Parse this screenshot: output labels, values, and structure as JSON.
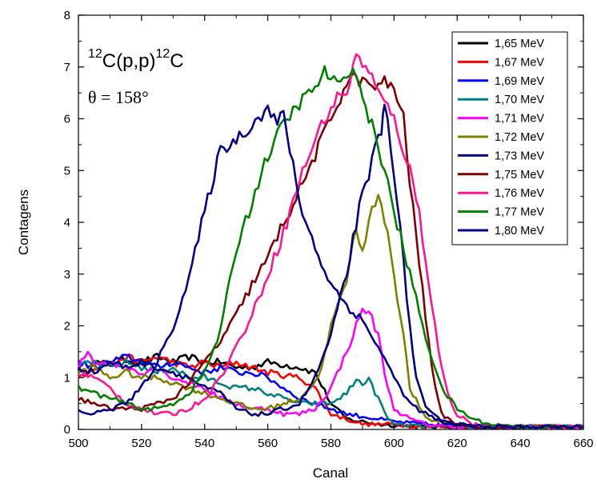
{
  "chart_data": {
    "type": "line",
    "title": "",
    "xlabel": "Canal",
    "ylabel": "Contagens",
    "xlim": [
      500,
      660
    ],
    "ylim": [
      0,
      8
    ],
    "x_ticks": [
      "500",
      "520",
      "540",
      "560",
      "580",
      "600",
      "620",
      "640",
      "660"
    ],
    "y_ticks": [
      "0",
      "1",
      "2",
      "3",
      "4",
      "5",
      "6",
      "7",
      "8"
    ],
    "grid": false,
    "legend_position": "top-right",
    "annotations": {
      "reaction_sup1": "12",
      "reaction_part1": "C(p,p)",
      "reaction_sup2": "12",
      "reaction_part2": "C",
      "angle": "θ = 158°"
    },
    "series": [
      {
        "name": "1,65 MeV",
        "color": "#000000",
        "x": [
          500,
          505,
          510,
          515,
          520,
          525,
          530,
          535,
          540,
          545,
          550,
          555,
          560,
          565,
          570,
          575,
          580,
          585,
          590,
          595,
          600,
          610,
          620,
          630,
          640,
          650,
          660
        ],
        "y": [
          1.2,
          1.3,
          1.25,
          1.35,
          1.3,
          1.4,
          1.3,
          1.4,
          1.3,
          1.3,
          1.2,
          1.2,
          1.3,
          1.25,
          1.2,
          1.1,
          0.5,
          0.2,
          0.15,
          0.1,
          0.08,
          0.05,
          0.05,
          0.05,
          0.05,
          0.05,
          0.05
        ]
      },
      {
        "name": "1,67 MeV",
        "color": "#ff0000",
        "x": [
          500,
          505,
          510,
          515,
          520,
          525,
          530,
          535,
          540,
          545,
          550,
          555,
          560,
          565,
          570,
          575,
          580,
          585,
          590,
          600,
          610,
          620,
          630,
          640,
          650,
          660
        ],
        "y": [
          1.0,
          1.2,
          1.3,
          1.4,
          1.3,
          1.4,
          1.3,
          1.2,
          1.3,
          1.2,
          1.3,
          1.2,
          1.1,
          1.05,
          1.0,
          0.8,
          0.3,
          0.2,
          0.1,
          0.1,
          0.05,
          0.05,
          0.05,
          0.05,
          0.05,
          0.05
        ]
      },
      {
        "name": "1,69 MeV",
        "color": "#0000ff",
        "x": [
          500,
          505,
          510,
          515,
          520,
          525,
          530,
          535,
          540,
          545,
          550,
          555,
          560,
          565,
          570,
          575,
          580,
          585,
          590,
          595,
          600,
          610,
          620,
          630,
          640,
          650,
          660
        ],
        "y": [
          1.3,
          1.2,
          1.3,
          1.4,
          1.3,
          1.2,
          1.3,
          1.2,
          1.1,
          1.2,
          1.1,
          1.1,
          1.0,
          0.8,
          0.6,
          0.5,
          0.4,
          0.3,
          0.25,
          0.2,
          0.15,
          0.1,
          0.05,
          0.05,
          0.05,
          0.05,
          0.05
        ]
      },
      {
        "name": "1,70 MeV",
        "color": "#008080",
        "x": [
          500,
          505,
          510,
          515,
          520,
          525,
          530,
          535,
          540,
          545,
          550,
          555,
          560,
          565,
          570,
          575,
          580,
          585,
          588,
          590,
          592,
          595,
          598,
          600,
          610,
          620,
          630,
          640,
          650,
          660
        ],
        "y": [
          1.2,
          1.3,
          1.2,
          1.3,
          1.2,
          1.1,
          1.2,
          1.0,
          1.0,
          0.9,
          0.8,
          0.8,
          0.7,
          0.6,
          0.5,
          0.5,
          0.5,
          0.7,
          0.95,
          0.9,
          0.95,
          0.6,
          0.2,
          0.1,
          0.05,
          0.05,
          0.05,
          0.05,
          0.05,
          0.05
        ]
      },
      {
        "name": "1,71 MeV",
        "color": "#ff00ff",
        "x": [
          500,
          503,
          505,
          510,
          515,
          520,
          525,
          530,
          535,
          540,
          545,
          550,
          555,
          560,
          565,
          570,
          575,
          580,
          585,
          588,
          590,
          592,
          595,
          598,
          600,
          605,
          610,
          620,
          630,
          640,
          650,
          660
        ],
        "y": [
          1.2,
          1.5,
          1.3,
          1.3,
          1.2,
          1.1,
          1.2,
          1.0,
          0.9,
          0.8,
          0.6,
          0.5,
          0.4,
          0.4,
          0.3,
          0.3,
          0.4,
          0.8,
          1.5,
          2.0,
          2.3,
          2.3,
          1.8,
          0.8,
          0.4,
          0.2,
          0.1,
          0.05,
          0.05,
          0.05,
          0.05,
          0.05
        ]
      },
      {
        "name": "1,72 MeV",
        "color": "#808000",
        "x": [
          500,
          505,
          510,
          515,
          520,
          525,
          530,
          535,
          540,
          545,
          550,
          555,
          560,
          565,
          570,
          575,
          578,
          580,
          583,
          585,
          588,
          590,
          592,
          594,
          596,
          598,
          600,
          603,
          605,
          610,
          620,
          630,
          640,
          650,
          660
        ],
        "y": [
          1.1,
          1.2,
          1.0,
          1.1,
          1.0,
          1.0,
          0.9,
          0.8,
          0.7,
          0.6,
          0.5,
          0.4,
          0.4,
          0.5,
          0.6,
          0.9,
          1.4,
          2.0,
          2.5,
          2.9,
          3.9,
          3.5,
          4.0,
          4.4,
          4.4,
          3.8,
          3.0,
          1.8,
          0.8,
          0.2,
          0.1,
          0.05,
          0.05,
          0.05,
          0.05
        ]
      },
      {
        "name": "1,73 MeV",
        "color": "#000080",
        "x": [
          500,
          505,
          510,
          515,
          520,
          525,
          530,
          535,
          540,
          545,
          550,
          555,
          560,
          565,
          570,
          575,
          580,
          585,
          588,
          590,
          592,
          594,
          596,
          597,
          598,
          600,
          602,
          605,
          607,
          610,
          615,
          620,
          630,
          640,
          650,
          660
        ],
        "y": [
          1.2,
          1.1,
          1.3,
          1.2,
          1.3,
          1.2,
          1.1,
          1.0,
          0.8,
          0.7,
          0.4,
          0.3,
          0.3,
          0.4,
          0.5,
          1.0,
          1.8,
          3.0,
          4.0,
          4.5,
          4.8,
          5.5,
          5.8,
          6.2,
          6.0,
          5.0,
          3.8,
          2.0,
          1.0,
          0.4,
          0.15,
          0.1,
          0.05,
          0.05,
          0.05,
          0.05
        ]
      },
      {
        "name": "1,75 MeV",
        "color": "#800000",
        "x": [
          500,
          505,
          510,
          515,
          520,
          525,
          530,
          535,
          540,
          545,
          550,
          555,
          560,
          565,
          570,
          575,
          580,
          585,
          588,
          590,
          595,
          597,
          600,
          603,
          605,
          608,
          610,
          613,
          615,
          620,
          630,
          640,
          650,
          660
        ],
        "y": [
          0.6,
          0.5,
          0.4,
          0.4,
          0.4,
          0.5,
          0.6,
          0.9,
          1.3,
          1.7,
          2.2,
          2.8,
          3.3,
          4.0,
          4.6,
          5.3,
          6.0,
          6.7,
          6.8,
          6.7,
          6.6,
          6.7,
          6.6,
          6.0,
          4.8,
          3.2,
          2.2,
          0.8,
          0.3,
          0.1,
          0.05,
          0.05,
          0.05,
          0.05
        ]
      },
      {
        "name": "1,76 MeV",
        "color": "#ff1493",
        "x": [
          500,
          505,
          510,
          515,
          520,
          525,
          530,
          535,
          540,
          545,
          550,
          555,
          560,
          565,
          570,
          575,
          578,
          580,
          583,
          585,
          588,
          590,
          593,
          595,
          600,
          605,
          608,
          610,
          613,
          615,
          618,
          620,
          625,
          630,
          640,
          650,
          660
        ],
        "y": [
          1.1,
          1.0,
          0.8,
          0.5,
          0.4,
          0.3,
          0.3,
          0.4,
          0.6,
          1.0,
          1.6,
          2.2,
          3.0,
          3.8,
          4.8,
          5.6,
          6.0,
          6.2,
          6.5,
          6.5,
          7.2,
          7.1,
          6.8,
          6.5,
          6.0,
          5.0,
          4.2,
          3.3,
          2.0,
          1.2,
          0.5,
          0.3,
          0.1,
          0.05,
          0.05,
          0.05,
          0.05
        ]
      },
      {
        "name": "1,77 MeV",
        "color": "#008000",
        "x": [
          500,
          505,
          510,
          515,
          520,
          525,
          530,
          535,
          540,
          545,
          550,
          555,
          560,
          565,
          570,
          575,
          578,
          580,
          583,
          585,
          587,
          590,
          595,
          600,
          605,
          610,
          615,
          620,
          625,
          630,
          640,
          650,
          660
        ],
        "y": [
          0.8,
          0.7,
          0.6,
          0.5,
          0.4,
          0.4,
          0.5,
          0.7,
          1.1,
          1.9,
          3.5,
          4.4,
          5.3,
          5.9,
          6.3,
          6.6,
          6.9,
          6.8,
          6.6,
          6.8,
          7.1,
          6.4,
          5.5,
          4.2,
          3.0,
          1.8,
          0.8,
          0.4,
          0.2,
          0.1,
          0.05,
          0.05,
          0.05
        ]
      },
      {
        "name": "1,80 MeV",
        "color": "#00008b",
        "x": [
          500,
          505,
          510,
          515,
          520,
          525,
          530,
          535,
          540,
          545,
          550,
          555,
          560,
          563,
          565,
          570,
          575,
          580,
          585,
          590,
          595,
          600,
          605,
          610,
          615,
          620,
          630,
          640,
          650,
          660
        ],
        "y": [
          0.35,
          0.3,
          0.4,
          0.5,
          0.8,
          1.3,
          2.0,
          2.9,
          4.2,
          5.4,
          5.6,
          5.9,
          6.2,
          5.9,
          6.1,
          4.4,
          3.5,
          2.8,
          2.4,
          2.1,
          1.6,
          1.0,
          0.5,
          0.3,
          0.15,
          0.1,
          0.05,
          0.05,
          0.05,
          0.05
        ]
      }
    ]
  }
}
